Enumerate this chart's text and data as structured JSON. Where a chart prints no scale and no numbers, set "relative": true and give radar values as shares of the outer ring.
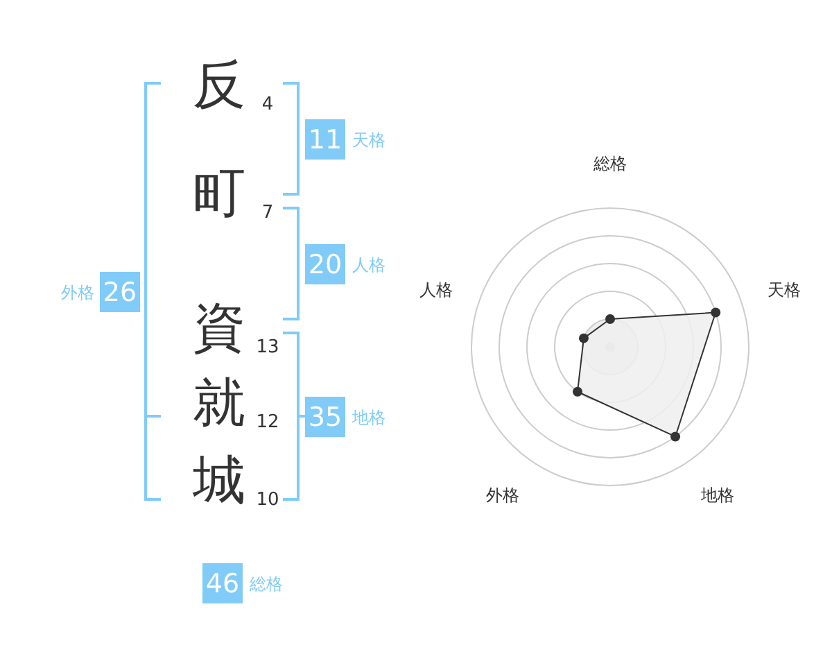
{
  "chart_data": [
    {
      "type": "other",
      "annotations": [
        "反",
        "4",
        "町",
        "7",
        "資",
        "13",
        "就",
        "12",
        "城",
        "10",
        "11",
        "天格",
        "20",
        "人格",
        "35",
        "地格",
        "26",
        "外格",
        "46",
        "総格"
      ]
    },
    {
      "type": "radar",
      "relative": true,
      "categories": [
        "総格",
        "天格",
        "地格",
        "外格",
        "人格"
      ],
      "grid": true,
      "marker": "circle",
      "series": [
        {
          "color": "#333333",
          "values": [
            0.2,
            0.8,
            0.8,
            0.4,
            0.2
          ]
        }
      ]
    }
  ]
}
